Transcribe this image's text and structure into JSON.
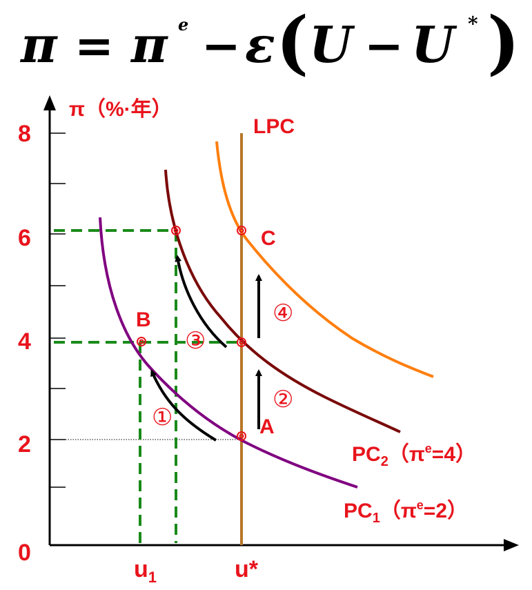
{
  "formula": {
    "lhs": "π",
    "eq": "=",
    "pi": "π",
    "pi_sup": "e",
    "minus": "−",
    "epsilon": "ε",
    "lparen": "(",
    "u": "U",
    "minus2": "−",
    "u2": "U",
    "u_sup": "*",
    "rparen": ")"
  },
  "axes": {
    "y_title": "π（%·年）",
    "y_ticks": [
      "8",
      "6",
      "4",
      "2",
      "0"
    ],
    "x_u1": "u",
    "x_u1_sub": "1",
    "x_ustar": "u*"
  },
  "curves": {
    "lpc": "LPC",
    "pc1": "PC",
    "pc1_sub": "1",
    "pc1_par_open": "（",
    "pc1_pi": "π",
    "pc1_sup": "e",
    "pc1_eq": "=2）",
    "pc2": "PC",
    "pc2_sub": "2",
    "pc2_par_open": "（",
    "pc2_pi": "π",
    "pc2_sup": "e",
    "pc2_eq": "=4）"
  },
  "points": {
    "a": "A",
    "b": "B",
    "c": "C"
  },
  "steps": {
    "s1": "①",
    "s2": "②",
    "s3": "③",
    "s4": "④"
  },
  "colors": {
    "pc1": "#800080",
    "pc2": "#7a0a0a",
    "pc3": "#ff7f0e",
    "lpc": "#b8762a",
    "guide": "#1a8a1a",
    "label": "#e8141c",
    "axis": "#000000"
  }
}
